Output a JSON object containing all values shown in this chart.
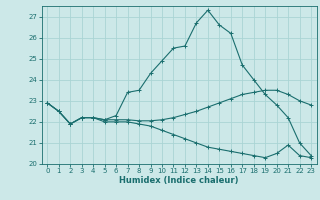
{
  "xlabel": "Humidex (Indice chaleur)",
  "ylabel": "",
  "bg_color": "#cce8e8",
  "grid_color": "#aad4d4",
  "line_color": "#1a6e6e",
  "xlim": [
    -0.5,
    23.5
  ],
  "ylim": [
    20,
    27.5
  ],
  "xticks": [
    0,
    1,
    2,
    3,
    4,
    5,
    6,
    7,
    8,
    9,
    10,
    11,
    12,
    13,
    14,
    15,
    16,
    17,
    18,
    19,
    20,
    21,
    22,
    23
  ],
  "yticks": [
    20,
    21,
    22,
    23,
    24,
    25,
    26,
    27
  ],
  "line1_x": [
    0,
    1,
    2,
    3,
    4,
    5,
    6,
    7,
    8,
    9,
    10,
    11,
    12,
    13,
    14,
    15,
    16,
    17,
    18,
    19,
    20,
    21,
    22,
    23
  ],
  "line1_y": [
    22.9,
    22.5,
    21.9,
    22.2,
    22.2,
    22.1,
    22.1,
    22.1,
    22.05,
    22.05,
    22.1,
    22.2,
    22.35,
    22.5,
    22.7,
    22.9,
    23.1,
    23.3,
    23.4,
    23.5,
    23.5,
    23.3,
    23.0,
    22.8
  ],
  "line2_x": [
    0,
    1,
    2,
    3,
    4,
    5,
    6,
    7,
    8,
    9,
    10,
    11,
    12,
    13,
    14,
    15,
    16,
    17,
    18,
    19,
    20,
    21,
    22,
    23
  ],
  "line2_y": [
    22.9,
    22.5,
    21.9,
    22.2,
    22.2,
    22.0,
    22.0,
    22.0,
    21.9,
    21.8,
    21.6,
    21.4,
    21.2,
    21.0,
    20.8,
    20.7,
    20.6,
    20.5,
    20.4,
    20.3,
    20.5,
    20.9,
    20.4,
    20.3
  ],
  "line3_x": [
    0,
    1,
    2,
    3,
    4,
    5,
    6,
    7,
    8,
    9,
    10,
    11,
    12,
    13,
    14,
    15,
    16,
    17,
    18,
    19,
    20,
    21,
    22,
    23
  ],
  "line3_y": [
    22.9,
    22.5,
    21.9,
    22.2,
    22.2,
    22.1,
    22.3,
    23.4,
    23.5,
    24.3,
    24.9,
    25.5,
    25.6,
    26.7,
    27.3,
    26.6,
    26.2,
    24.7,
    24.0,
    23.3,
    22.8,
    22.2,
    21.0,
    20.4
  ],
  "marker_size": 3,
  "tick_fontsize": 5,
  "xlabel_fontsize": 6
}
